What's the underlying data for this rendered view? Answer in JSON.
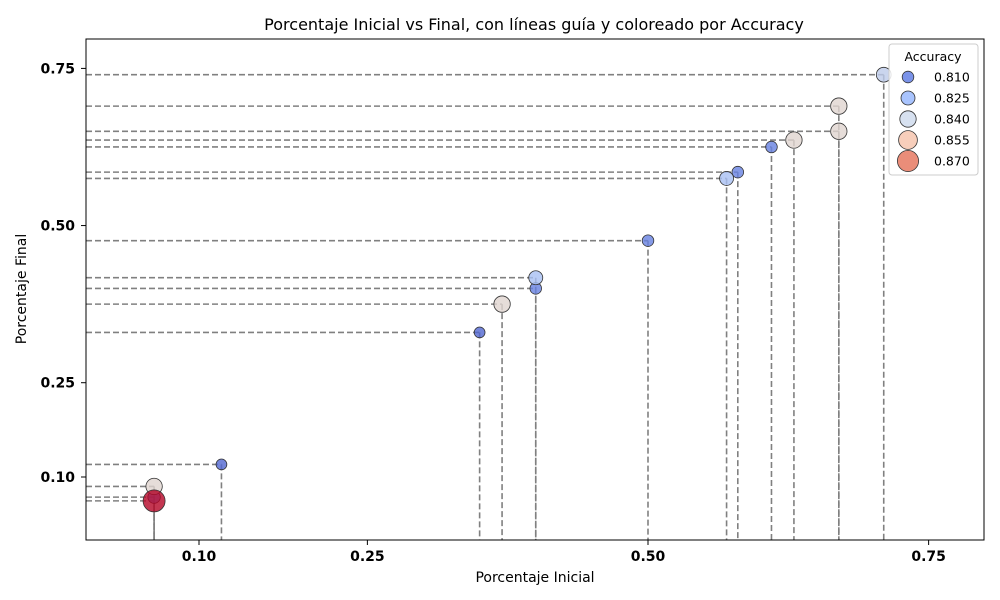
{
  "chart_data": {
    "type": "scatter",
    "title": "Porcentaje Inicial vs Final, con líneas guía y coloreado por Accuracy",
    "xlabel": "Porcentaje Inicial",
    "ylabel": "Porcentaje Final",
    "xlim": [
      0.0,
      0.8
    ],
    "ylim": [
      0.0,
      0.8
    ],
    "xticks": [
      0.1,
      0.25,
      0.5,
      0.75
    ],
    "xtick_labels": [
      "0.10",
      "0.25",
      "0.50",
      "0.75"
    ],
    "yticks": [
      0.1,
      0.25,
      0.5,
      0.75
    ],
    "ytick_labels": [
      "0.10",
      "0.25",
      "0.50",
      "0.75"
    ],
    "guide_lines": "dashed gray from each point to both axes",
    "grid": false,
    "legend": {
      "title": "Accuracy",
      "placement": "top-right",
      "entries": [
        {
          "label": "0.810",
          "color": "#5a78e4"
        },
        {
          "label": "0.825",
          "color": "#93b5fe"
        },
        {
          "label": "0.840",
          "color": "#cdd9ec"
        },
        {
          "label": "0.855",
          "color": "#f5c2aa"
        },
        {
          "label": "0.870",
          "color": "#e57058"
        }
      ]
    },
    "colormap": "coolwarm",
    "accuracy_range": [
      0.8,
      0.875
    ],
    "points": [
      {
        "x": 0.06,
        "y": 0.062,
        "accuracy": 0.875
      },
      {
        "x": 0.06,
        "y": 0.068,
        "accuracy": 0.815
      },
      {
        "x": 0.06,
        "y": 0.085,
        "accuracy": 0.84
      },
      {
        "x": 0.12,
        "y": 0.12,
        "accuracy": 0.805
      },
      {
        "x": 0.35,
        "y": 0.33,
        "accuracy": 0.805
      },
      {
        "x": 0.37,
        "y": 0.375,
        "accuracy": 0.84
      },
      {
        "x": 0.4,
        "y": 0.4,
        "accuracy": 0.81
      },
      {
        "x": 0.4,
        "y": 0.417,
        "accuracy": 0.825
      },
      {
        "x": 0.5,
        "y": 0.476,
        "accuracy": 0.81
      },
      {
        "x": 0.57,
        "y": 0.575,
        "accuracy": 0.825
      },
      {
        "x": 0.58,
        "y": 0.585,
        "accuracy": 0.81
      },
      {
        "x": 0.61,
        "y": 0.625,
        "accuracy": 0.81
      },
      {
        "x": 0.63,
        "y": 0.636,
        "accuracy": 0.84
      },
      {
        "x": 0.67,
        "y": 0.65,
        "accuracy": 0.84
      },
      {
        "x": 0.67,
        "y": 0.69,
        "accuracy": 0.84
      },
      {
        "x": 0.71,
        "y": 0.74,
        "accuracy": 0.83
      }
    ]
  }
}
